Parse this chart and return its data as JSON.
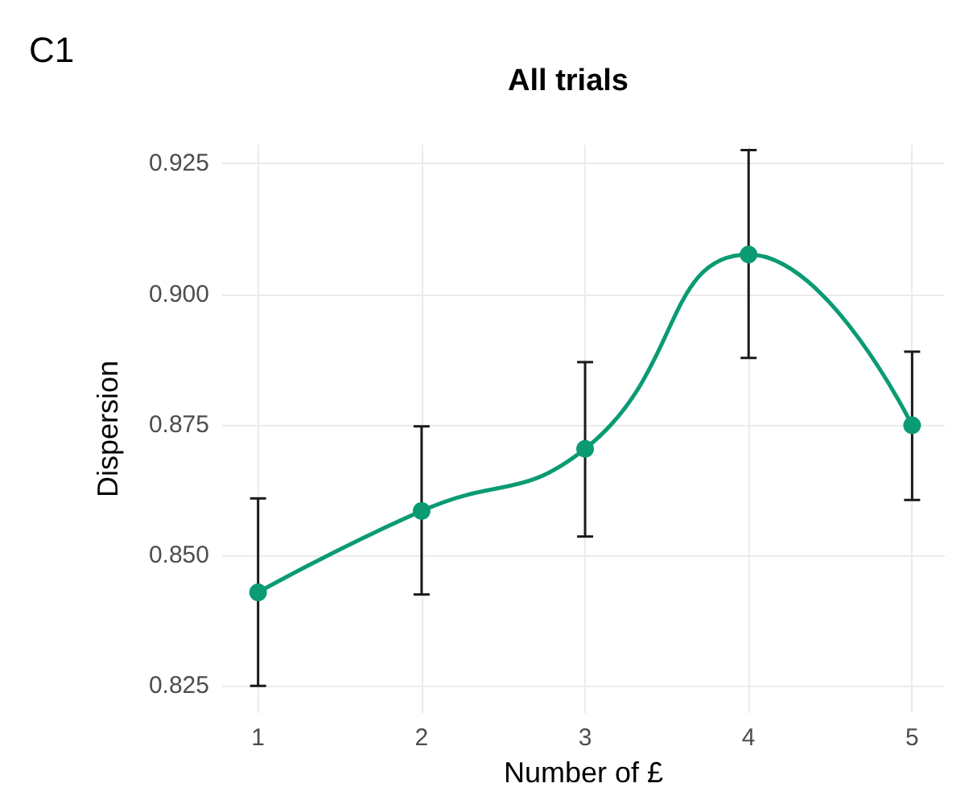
{
  "chart_data": {
    "type": "line",
    "title": "All trials",
    "xlabel": "Number of £",
    "ylabel": "Dispersion",
    "annotations": [
      "C1"
    ],
    "x": [
      1,
      2,
      3,
      4,
      5
    ],
    "series": [
      {
        "color": "#0a9b73",
        "values": [
          0.8429,
          0.8585,
          0.8704,
          0.9076,
          0.8749
        ],
        "errors": [
          [
            0.825,
            0.8609
          ],
          [
            0.8425,
            0.8747
          ],
          [
            0.8536,
            0.887
          ],
          [
            0.8878,
            0.9276
          ],
          [
            0.8606,
            0.889
          ]
        ]
      }
    ],
    "xlim": [
      0.78,
      5.2
    ],
    "xticks": [
      1,
      2,
      3,
      4,
      5
    ],
    "ylim": [
      0.8198,
      0.9286
    ],
    "yticks": [
      {
        "value": 0.825,
        "label": "0.825"
      },
      {
        "value": 0.85,
        "label": "0.850"
      },
      {
        "value": 0.875,
        "label": "0.875"
      },
      {
        "value": 0.9,
        "label": "0.900"
      },
      {
        "value": 0.925,
        "label": "0.925"
      }
    ],
    "grid": true,
    "marker": "circle",
    "line_style": "solid"
  }
}
